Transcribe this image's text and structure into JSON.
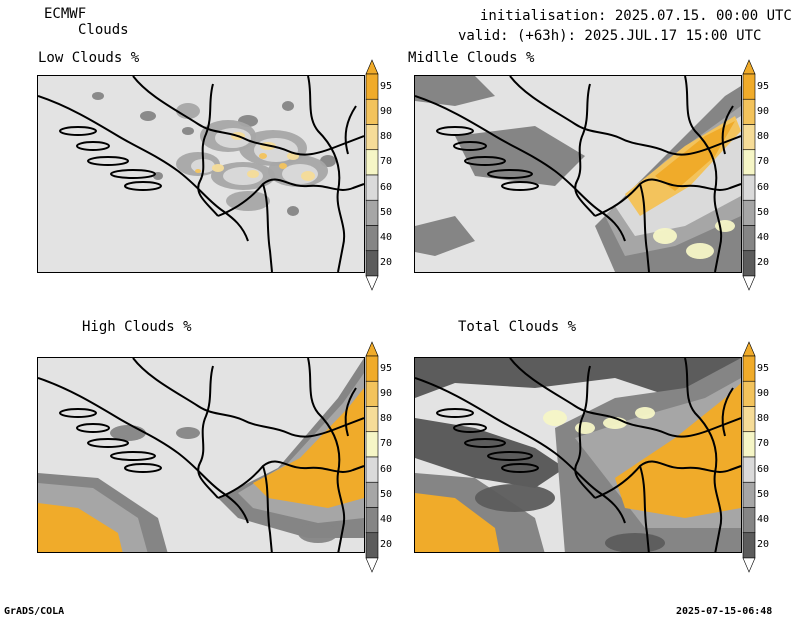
{
  "header": {
    "model": "ECMWF",
    "product": "Clouds",
    "initialisation": "initialisation: 2025.07.15. 00:00 UTC",
    "valid": "valid: (+63h): 2025.JUL.17 15:00 UTC"
  },
  "panels": [
    {
      "title": "Low Clouds %"
    },
    {
      "title": "Midlle Clouds %"
    },
    {
      "title": "High Clouds %"
    },
    {
      "title": "Total Clouds %"
    }
  ],
  "colorbar": {
    "levels": [
      "95",
      "90",
      "80",
      "70",
      "60",
      "50",
      "40",
      "20"
    ],
    "colors": [
      "#f0ab2a",
      "#f3c35c",
      "#f6dc98",
      "#f6f6c6",
      "#dadada",
      "#a6a6a6",
      "#858585",
      "#5c5c5c"
    ]
  },
  "footer": {
    "left": "GrADS/COLA",
    "right": "2025-07-15-06:48"
  }
}
